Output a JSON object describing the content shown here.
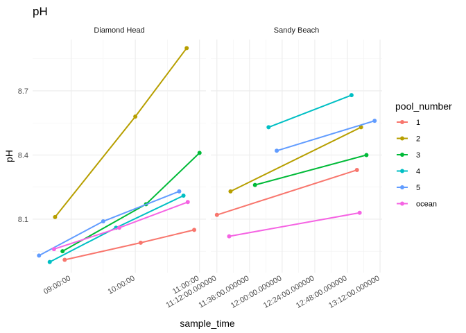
{
  "chart_data": {
    "type": "line",
    "title": "pH",
    "xlabel": "sample_time",
    "ylabel": "pH",
    "legend": {
      "title": "pool_number",
      "placement": "right"
    },
    "grid": true,
    "yticks": [
      "8.1",
      "8.4",
      "8.7"
    ],
    "colors": {
      "1": "#F8766D",
      "2": "#B79F00",
      "3": "#00BA38",
      "4": "#00BFC4",
      "5": "#619CFF",
      "ocean": "#F564E3"
    },
    "panels": [
      {
        "name": "Diamond Head",
        "xticks": [
          "09:00:00",
          "10:00:00",
          "11:00:00"
        ],
        "series": [
          {
            "name": "1",
            "points": [
              [
                "08:54",
                7.91
              ],
              [
                "10:05",
                7.99
              ],
              [
                "10:55",
                8.05
              ]
            ]
          },
          {
            "name": "2",
            "points": [
              [
                "08:45",
                8.11
              ],
              [
                "10:00",
                8.58
              ],
              [
                "10:48",
                8.9
              ]
            ]
          },
          {
            "name": "3",
            "points": [
              [
                "08:52",
                7.95
              ],
              [
                "10:10",
                8.17
              ],
              [
                "11:00",
                8.41
              ]
            ]
          },
          {
            "name": "4",
            "points": [
              [
                "08:40",
                7.9
              ],
              [
                "09:42",
                8.06
              ],
              [
                "10:45",
                8.21
              ]
            ]
          },
          {
            "name": "5",
            "points": [
              [
                "08:30",
                7.93
              ],
              [
                "09:30",
                8.09
              ],
              [
                "10:41",
                8.23
              ]
            ]
          },
          {
            "name": "ocean",
            "points": [
              [
                "08:44",
                7.96
              ],
              [
                "09:45",
                8.06
              ],
              [
                "10:49",
                8.18
              ]
            ]
          }
        ]
      },
      {
        "name": "Sandy Beach",
        "xticks": [
          "11:12:00.000000",
          "11:36:00.000000",
          "12:00:00.000000",
          "12:24:00.000000",
          "12:48:00.000000",
          "13:12:00.000000"
        ],
        "series": [
          {
            "name": "1",
            "points": [
              [
                "11:12",
                8.12
              ],
              [
                "12:55",
                8.33
              ]
            ]
          },
          {
            "name": "2",
            "points": [
              [
                "11:22",
                8.23
              ],
              [
                "12:58",
                8.53
              ]
            ]
          },
          {
            "name": "3",
            "points": [
              [
                "11:40",
                8.26
              ],
              [
                "13:02",
                8.4
              ]
            ]
          },
          {
            "name": "4",
            "points": [
              [
                "11:50",
                8.53
              ],
              [
                "12:51",
                8.68
              ]
            ]
          },
          {
            "name": "5",
            "points": [
              [
                "11:56",
                8.42
              ],
              [
                "13:08",
                8.56
              ]
            ]
          },
          {
            "name": "ocean",
            "points": [
              [
                "11:21",
                8.02
              ],
              [
                "12:57",
                8.13
              ]
            ]
          }
        ]
      }
    ]
  }
}
